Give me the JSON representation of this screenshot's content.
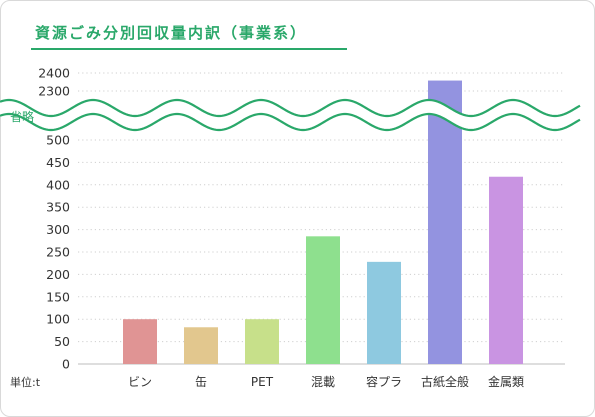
{
  "chart_data": {
    "type": "bar",
    "title": "資源ごみ分別回収量内訳（事業系）",
    "unit_label": "単位:t",
    "break_label": "省略",
    "categories": [
      "ビン",
      "缶",
      "PET",
      "混載",
      "容プラ",
      "古紙全般",
      "金属類"
    ],
    "values": [
      100,
      82,
      100,
      285,
      228,
      2358,
      418
    ],
    "colors": [
      "#e09494",
      "#e2c78e",
      "#c7e08a",
      "#8ee08e",
      "#8ec9e0",
      "#9393e0",
      "#c994e2"
    ],
    "y_ticks_lower": [
      0,
      50,
      100,
      150,
      200,
      250,
      300,
      350,
      400,
      450,
      500
    ],
    "y_ticks_upper": [
      2300,
      2400
    ],
    "ylim_lower": [
      0,
      500
    ],
    "ylim_upper": [
      2300,
      2400
    ],
    "grid": true,
    "axis_break": true,
    "break_color": "#2aa86a"
  }
}
